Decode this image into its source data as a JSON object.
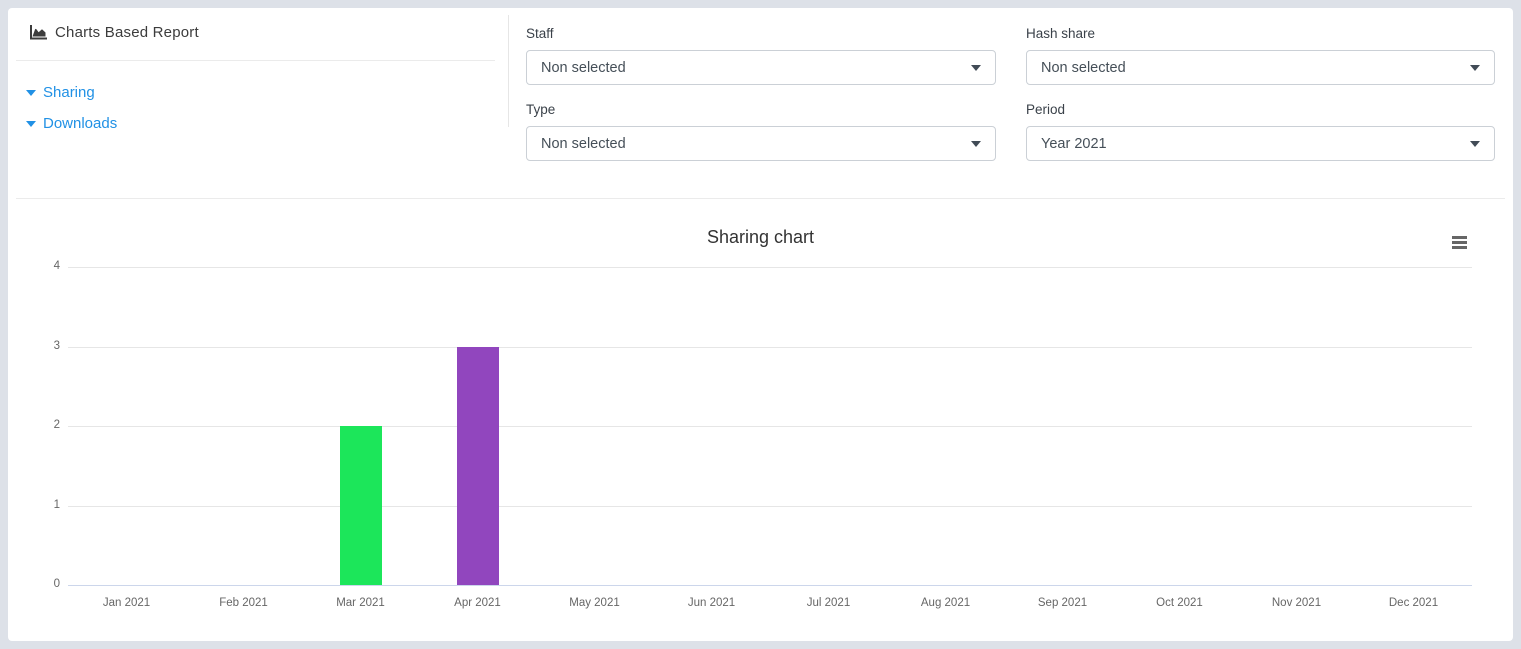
{
  "header": {
    "title": "Charts Based Report"
  },
  "sidebar": {
    "links": [
      {
        "label": "Sharing"
      },
      {
        "label": "Downloads"
      }
    ]
  },
  "filters": {
    "staff": {
      "label": "Staff",
      "value": "Non selected"
    },
    "hash_share": {
      "label": "Hash share",
      "value": "Non selected"
    },
    "type": {
      "label": "Type",
      "value": "Non selected"
    },
    "period": {
      "label": "Period",
      "value": "Year 2021"
    }
  },
  "chart": {
    "title": "Sharing chart",
    "menu_icon": "hamburger-icon"
  },
  "chart_data": {
    "type": "bar",
    "title": "Sharing chart",
    "categories": [
      "Jan 2021",
      "Feb 2021",
      "Mar 2021",
      "Apr 2021",
      "May 2021",
      "Jun 2021",
      "Jul 2021",
      "Aug 2021",
      "Sep 2021",
      "Oct 2021",
      "Nov 2021",
      "Dec 2021"
    ],
    "values": [
      0,
      0,
      2,
      3,
      0,
      0,
      0,
      0,
      0,
      0,
      0,
      0
    ],
    "point_colors": [
      null,
      null,
      "#1ce65a",
      "#9146be",
      null,
      null,
      null,
      null,
      null,
      null,
      null,
      null
    ],
    "xlabel": "",
    "ylabel": "",
    "ylim": [
      0,
      4
    ],
    "yticks": [
      0,
      1,
      2,
      3,
      4
    ],
    "grid": true,
    "legend": false
  },
  "colors": {
    "link_blue": "#2191e5",
    "bar_green": "#1ce65a",
    "bar_purple": "#9146be",
    "gridline": "#e6e6e6",
    "axis_line": "#ccd6eb",
    "outer_border": "#dde1e8"
  }
}
